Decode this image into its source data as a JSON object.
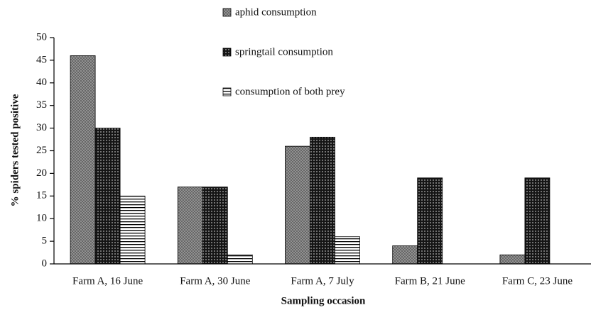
{
  "chart_data": {
    "type": "bar",
    "categories": [
      "Farm A, 16 June",
      "Farm A, 30 June",
      "Farm A, 7 July",
      "Farm B, 21 June",
      "Farm C, 23 June"
    ],
    "series": [
      {
        "name": "aphid consumption",
        "color": "#9a9a9a",
        "values": [
          46,
          17,
          26,
          4,
          2
        ]
      },
      {
        "name": "springtail consumption",
        "color": "#151515",
        "values": [
          30,
          17,
          28,
          19,
          19
        ]
      },
      {
        "name": "consumption of both prey",
        "color": "#ffffff",
        "values": [
          15,
          2,
          6,
          0,
          0
        ]
      }
    ],
    "ylim": [
      0,
      50
    ],
    "yticks": [
      0,
      5,
      10,
      15,
      20,
      25,
      30,
      35,
      40,
      45,
      50
    ],
    "xlabel": "Sampling occasion",
    "ylabel": "% spiders tested positive",
    "legend": "top"
  }
}
